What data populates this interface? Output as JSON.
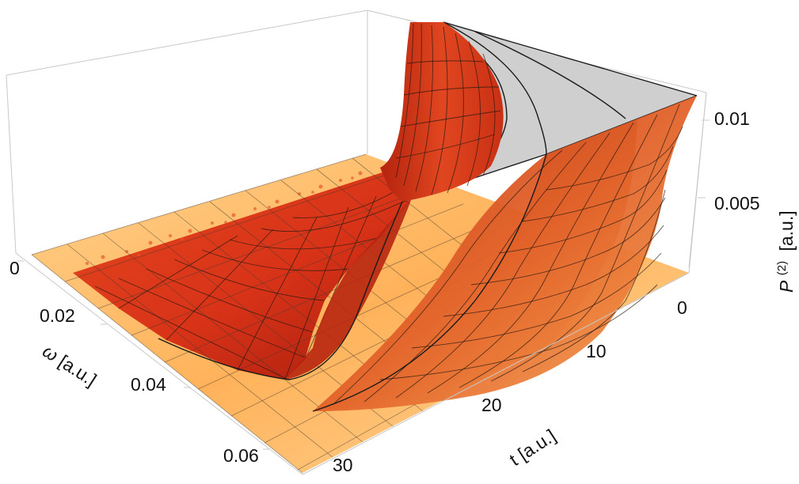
{
  "chart_data": {
    "type": "surface3d",
    "title": "",
    "x_axis": {
      "label_base": "ω",
      "label_units": "[a.u.]",
      "ticks": [
        "0",
        "0.02",
        "0.04",
        "0.06"
      ],
      "range": [
        0,
        0.07
      ]
    },
    "y_axis": {
      "label_base": "t",
      "label_units": "[a.u.]",
      "ticks": [
        "0",
        "10",
        "20",
        "30"
      ],
      "range": [
        0,
        35
      ]
    },
    "z_axis": {
      "label_base": "P",
      "label_sup": "(2)",
      "label_units": "[a.u.]",
      "ticks": [
        "0.005",
        "0.01"
      ],
      "range": [
        0,
        0.012
      ]
    },
    "description_series": [
      {
        "name": "P(2)(ω, t)",
        "colormap": [
          "#ffe2a8",
          "#f58a2b",
          "#d62a14",
          "#9a1808"
        ],
        "clipped_color": "#cfcfcf"
      }
    ]
  }
}
